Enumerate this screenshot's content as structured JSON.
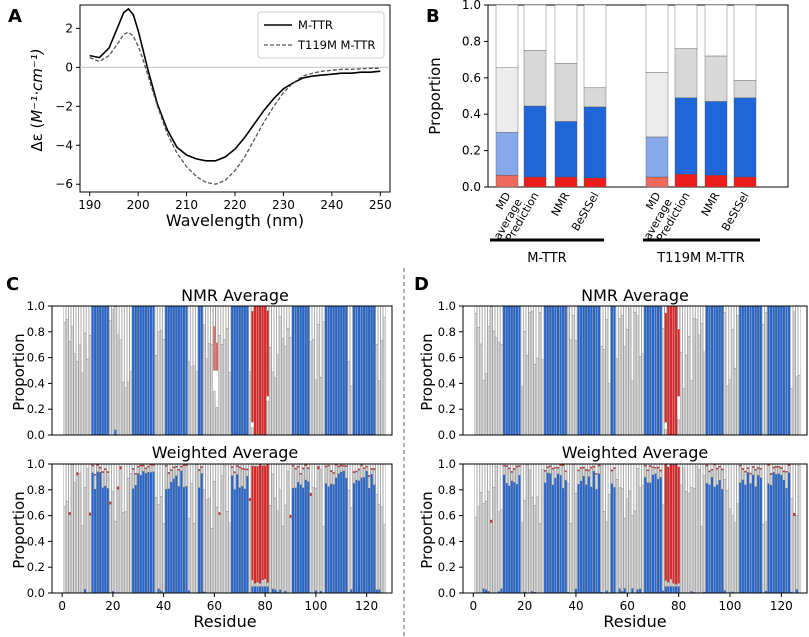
{
  "panel_labels": {
    "a": "A",
    "b": "B",
    "c": "C",
    "d": "D"
  },
  "chart_data": [
    {
      "id": "A",
      "type": "line",
      "xlabel": "Wavelength (nm)",
      "ylabel_main": "Δε (",
      "ylabel_unit": "M⁻¹·cm⁻¹)",
      "xlim": [
        188,
        252
      ],
      "ylim": [
        -6.4,
        3.2
      ],
      "xticks": [
        "190",
        "200",
        "210",
        "220",
        "230",
        "240",
        "250"
      ],
      "xtick_values": [
        190,
        200,
        210,
        220,
        230,
        240,
        250
      ],
      "yticks": [
        "−6",
        "−4",
        "−2",
        "0",
        "2"
      ],
      "ytick_values": [
        -6,
        -4,
        -2,
        0,
        2
      ],
      "series": [
        {
          "name": "M-TTR",
          "style": "solid",
          "color": "#000000",
          "x": [
            190,
            192,
            194,
            196,
            197,
            198,
            199,
            200,
            201,
            202,
            204,
            206,
            208,
            210,
            212,
            214,
            216,
            218,
            220,
            222,
            224,
            226,
            228,
            230,
            232,
            234,
            236,
            238,
            240,
            242,
            244,
            246,
            248,
            250
          ],
          "y": [
            0.6,
            0.5,
            1.0,
            2.2,
            2.8,
            3.0,
            2.7,
            1.9,
            0.9,
            -0.1,
            -1.9,
            -3.2,
            -4.1,
            -4.5,
            -4.7,
            -4.8,
            -4.8,
            -4.6,
            -4.2,
            -3.6,
            -2.9,
            -2.2,
            -1.6,
            -1.1,
            -0.8,
            -0.55,
            -0.45,
            -0.4,
            -0.35,
            -0.3,
            -0.3,
            -0.25,
            -0.25,
            -0.2
          ]
        },
        {
          "name": "T119M M-TTR",
          "style": "dashed",
          "color": "#555555",
          "x": [
            190,
            192,
            194,
            196,
            197,
            198,
            199,
            200,
            201,
            202,
            204,
            206,
            208,
            210,
            212,
            214,
            216,
            218,
            220,
            222,
            224,
            226,
            228,
            230,
            232,
            234,
            236,
            238,
            240,
            242,
            244,
            246,
            248,
            250
          ],
          "y": [
            0.5,
            0.3,
            0.6,
            1.3,
            1.7,
            1.8,
            1.6,
            1.1,
            0.4,
            -0.4,
            -2.0,
            -3.4,
            -4.4,
            -5.1,
            -5.6,
            -5.9,
            -6.0,
            -5.8,
            -5.3,
            -4.6,
            -3.7,
            -2.8,
            -2.0,
            -1.3,
            -0.8,
            -0.45,
            -0.3,
            -0.2,
            -0.15,
            -0.1,
            -0.1,
            -0.08,
            -0.05,
            -0.05
          ]
        }
      ]
    },
    {
      "id": "B",
      "type": "bar",
      "stacked": true,
      "ylabel": "Proportion",
      "ylim": [
        0,
        1
      ],
      "yticks": [
        "0.0",
        "0.2",
        "0.4",
        "0.6",
        "0.8",
        "1.0"
      ],
      "ytick_values": [
        0,
        0.2,
        0.4,
        0.6,
        0.8,
        1.0
      ],
      "stack_order": [
        "helix",
        "strand",
        "coil",
        "other"
      ],
      "groups": [
        {
          "label": "M-TTR",
          "bars": [
            {
              "label": "MD\naverage",
              "helix": 0.065,
              "strand": 0.235,
              "coil": 0.355,
              "light": true
            },
            {
              "label": "Prediction",
              "helix": 0.055,
              "strand": 0.39,
              "coil": 0.305
            },
            {
              "label": "NMR",
              "helix": 0.055,
              "strand": 0.305,
              "coil": 0.32
            },
            {
              "label": "BeStSel",
              "helix": 0.05,
              "strand": 0.39,
              "coil": 0.105
            }
          ]
        },
        {
          "label": "T119M M-TTR",
          "bars": [
            {
              "label": "MD\naverage",
              "helix": 0.055,
              "strand": 0.22,
              "coil": 0.355,
              "light": true
            },
            {
              "label": "Prediction",
              "helix": 0.07,
              "strand": 0.42,
              "coil": 0.27
            },
            {
              "label": "NMR",
              "helix": 0.065,
              "strand": 0.405,
              "coil": 0.25
            },
            {
              "label": "BeStSel",
              "helix": 0.055,
              "strand": 0.435,
              "coil": 0.095
            }
          ]
        }
      ]
    },
    {
      "id": "C",
      "type": "bar",
      "stacked": true,
      "panels": [
        {
          "title": "NMR Average",
          "kind": "nmr"
        },
        {
          "title": "Weighted Average",
          "kind": "weighted"
        }
      ],
      "ylabel": "Proportion",
      "xlabel": "Residue",
      "xlim": [
        -4,
        130
      ],
      "ylim": [
        0,
        1
      ],
      "xticks": [
        "0",
        "20",
        "40",
        "60",
        "80",
        "100",
        "120"
      ],
      "xtick_values": [
        0,
        20,
        40,
        60,
        80,
        100,
        120
      ],
      "yticks": [
        "0.0",
        "0.2",
        "0.4",
        "0.6",
        "0.8",
        "1.0"
      ],
      "ytick_values": [
        0,
        0.2,
        0.4,
        0.6,
        0.8,
        1.0
      ],
      "residues": [
        1,
        127
      ],
      "helix_segments": [
        {
          "start": 75,
          "end": 81
        }
      ],
      "strand_segments": [
        {
          "start": 12,
          "end": 18
        },
        {
          "start": 28,
          "end": 36
        },
        {
          "start": 41,
          "end": 49
        },
        {
          "start": 54,
          "end": 55
        },
        {
          "start": 67,
          "end": 73
        },
        {
          "start": 91,
          "end": 97
        },
        {
          "start": 104,
          "end": 112
        },
        {
          "start": 115,
          "end": 123
        }
      ],
      "nmr_partial_helix": [
        {
          "residue": 60,
          "value": 0.5
        },
        {
          "residue": 61,
          "value": 0.5
        }
      ],
      "nmr_strand_baseline": [
        {
          "residue": 21,
          "value": 0.04
        }
      ]
    },
    {
      "id": "D",
      "type": "bar",
      "stacked": true,
      "panels": [
        {
          "title": "NMR Average",
          "kind": "nmr"
        },
        {
          "title": "Weighted Average",
          "kind": "weighted"
        }
      ],
      "ylabel": "Proportion",
      "xlabel": "Residue",
      "xlim": [
        -4,
        130
      ],
      "ylim": [
        0,
        1
      ],
      "xticks": [
        "0",
        "20",
        "40",
        "60",
        "80",
        "100",
        "120"
      ],
      "xtick_values": [
        0,
        20,
        40,
        60,
        80,
        100,
        120
      ],
      "yticks": [
        "0.0",
        "0.2",
        "0.4",
        "0.6",
        "0.8",
        "1.0"
      ],
      "ytick_values": [
        0,
        0.2,
        0.4,
        0.6,
        0.8,
        1.0
      ],
      "residues": [
        1,
        127
      ],
      "helix_segments": [
        {
          "start": 75,
          "end": 80
        }
      ],
      "strand_segments": [
        {
          "start": 12,
          "end": 18
        },
        {
          "start": 28,
          "end": 36
        },
        {
          "start": 41,
          "end": 49
        },
        {
          "start": 54,
          "end": 55
        },
        {
          "start": 67,
          "end": 73
        },
        {
          "start": 91,
          "end": 97
        },
        {
          "start": 104,
          "end": 112
        },
        {
          "start": 115,
          "end": 123
        }
      ],
      "nmr_partial_helix": [],
      "nmr_strand_baseline": []
    }
  ],
  "colors": {
    "helix": "#ee1d1d",
    "helix_light": "#ee6a5e",
    "strand": "#1e66d9",
    "strand_light": "#87a9ea",
    "coil": "#d8d8d8",
    "coil_light": "#ececec",
    "other": "#ffffff",
    "edge": "#555555"
  }
}
